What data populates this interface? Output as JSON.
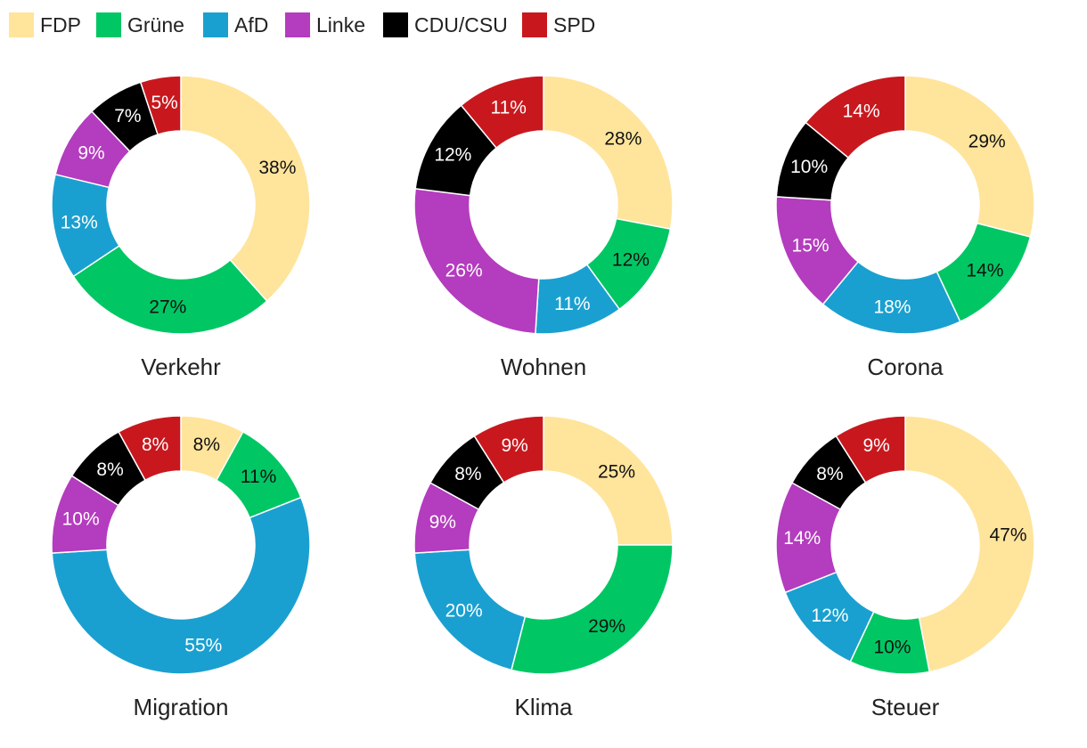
{
  "chart_data": {
    "type": "pie",
    "variant": "donut-small-multiples",
    "legend": {
      "placement": "top-left",
      "entries": [
        {
          "name": "FDP",
          "color": "#FFE49C"
        },
        {
          "name": "Grüne",
          "color": "#00C764"
        },
        {
          "name": "AfD",
          "color": "#1AA0D0"
        },
        {
          "name": "Linke",
          "color": "#B43CBE"
        },
        {
          "name": "CDU/CSU",
          "color": "#000000"
        },
        {
          "name": "SPD",
          "color": "#C8181E"
        }
      ]
    },
    "series_order": [
      "FDP",
      "Grüne",
      "AfD",
      "Linke",
      "CDU/CSU",
      "SPD"
    ],
    "label_colors": {
      "FDP": "#111111",
      "Grüne": "#111111",
      "AfD": "#ffffff",
      "Linke": "#ffffff",
      "CDU/CSU": "#ffffff",
      "SPD": "#ffffff"
    },
    "charts": [
      {
        "title": "Verkehr",
        "values": [
          38,
          27,
          13,
          9,
          7,
          5
        ],
        "labels": [
          "38%",
          "27%",
          "13%",
          "9%",
          "7%",
          "5%"
        ]
      },
      {
        "title": "Wohnen",
        "values": [
          28,
          12,
          11,
          26,
          12,
          11
        ],
        "labels": [
          "28%",
          "12%",
          "11%",
          "26%",
          "12%",
          "11%"
        ]
      },
      {
        "title": "Corona",
        "values": [
          29,
          14,
          18,
          15,
          10,
          14
        ],
        "labels": [
          "29%",
          "14%",
          "18%",
          "15%",
          "10%",
          "14%"
        ]
      },
      {
        "title": "Migration",
        "values": [
          8,
          11,
          55,
          10,
          8,
          8
        ],
        "labels": [
          "8%",
          "11%",
          "55%",
          "10%",
          "8%",
          "8%"
        ]
      },
      {
        "title": "Klima",
        "values": [
          25,
          29,
          20,
          9,
          8,
          9
        ],
        "labels": [
          "25%",
          "29%",
          "20%",
          "9%",
          "8%",
          "9%"
        ]
      },
      {
        "title": "Steuer",
        "values": [
          47,
          10,
          12,
          14,
          8,
          9
        ],
        "labels": [
          "47%",
          "10%",
          "12%",
          "14%",
          "8%",
          "9%"
        ]
      }
    ]
  }
}
